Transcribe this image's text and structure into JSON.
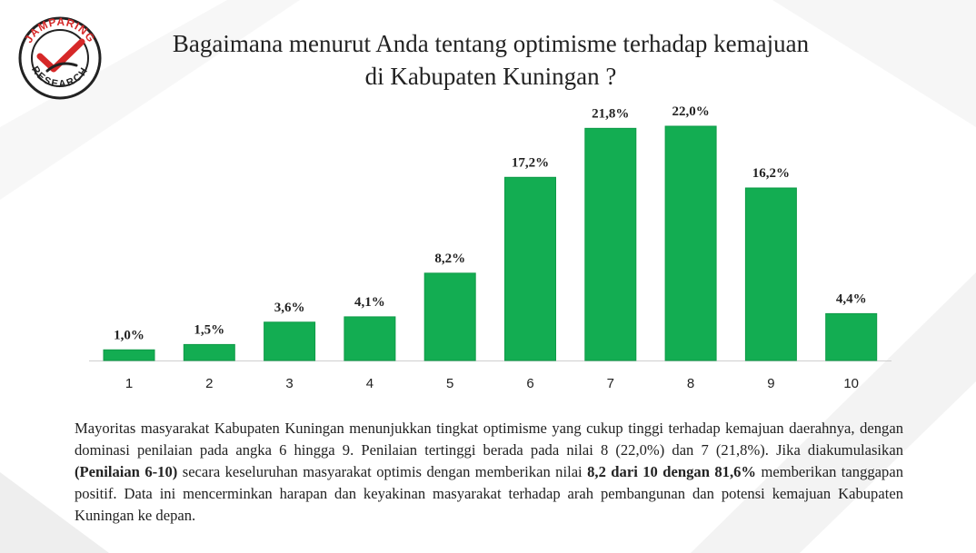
{
  "title_line1": "Bagaimana menurut Anda tentang optimisme terhadap kemajuan",
  "title_line2": "di Kabupaten Kuningan ?",
  "logo": {
    "top_text": "JAMPARING",
    "bottom_text": "RESEARCH",
    "colors": {
      "ring": "#222222",
      "check": "#d62828",
      "inner": "#ffffff"
    }
  },
  "colors": {
    "bar": "#13ad52",
    "bar_edge": "#0f9a48",
    "axis": "#cfcfcf",
    "text": "#222222"
  },
  "chart_data": {
    "type": "bar",
    "categories": [
      "1",
      "2",
      "3",
      "4",
      "5",
      "6",
      "7",
      "8",
      "9",
      "10"
    ],
    "values": [
      1.0,
      1.5,
      3.6,
      4.1,
      8.2,
      17.2,
      21.8,
      22.0,
      16.2,
      4.4
    ],
    "data_labels": [
      "1,0%",
      "1,5%",
      "3,6%",
      "4,1%",
      "8,2%",
      "17,2%",
      "21,8%",
      "22,0%",
      "16,2%",
      "4,4%"
    ],
    "ylim": [
      0,
      22
    ],
    "grid": false,
    "legend": "none"
  },
  "description": {
    "p1": "Mayoritas masyarakat Kabupaten Kuningan menunjukkan tingkat optimisme yang cukup tinggi terhadap kemajuan daerahnya, dengan dominasi penilaian pada angka 6 hingga 9. Penilaian tertinggi berada pada nilai 8 (22,0%) dan 7 (21,8%). Jika diakumulasikan ",
    "b1": "(Penilaian 6-10)",
    "p2": " secara keseluruhan masyarakat optimis dengan memberikan nilai ",
    "b2": "8,2 dari 10 dengan 81,6%",
    "p3": " memberikan tanggapan positif.  Data ini mencerminkan harapan dan keyakinan masyarakat terhadap arah pembangunan dan potensi kemajuan Kabupaten Kuningan ke depan."
  }
}
